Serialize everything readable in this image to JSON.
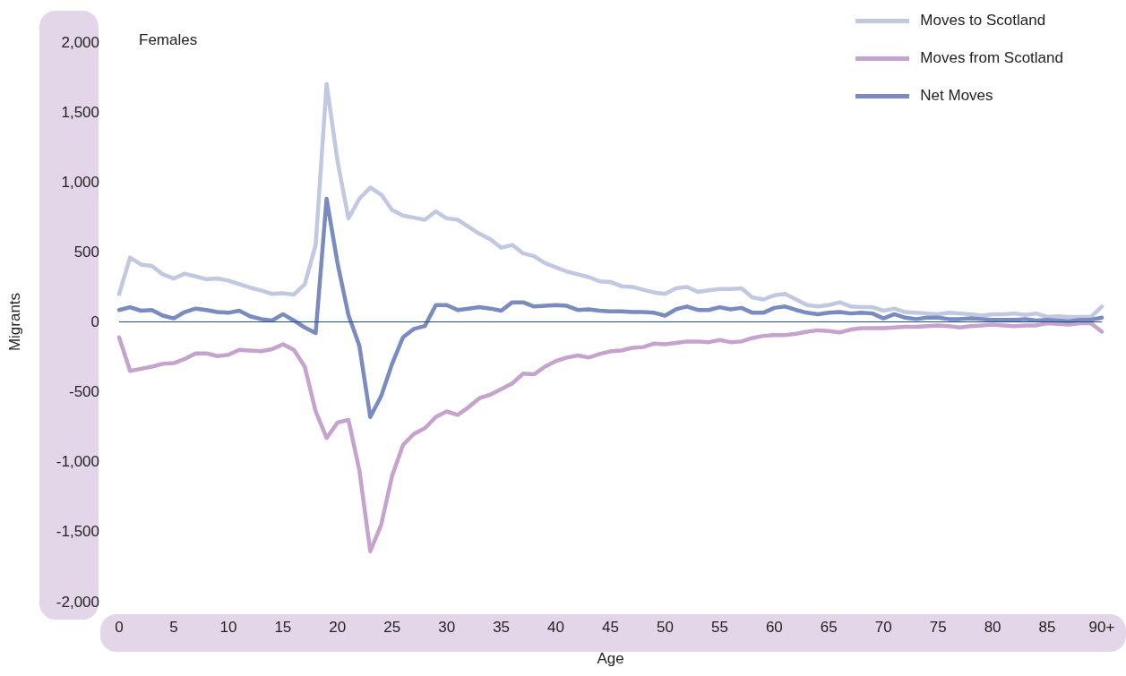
{
  "chart_data": {
    "type": "line",
    "xlabel": "Age",
    "ylabel": "Migrants",
    "annotations": [
      "Females"
    ],
    "categories": [
      "0",
      null,
      null,
      null,
      null,
      "5",
      null,
      null,
      null,
      null,
      "10",
      null,
      null,
      null,
      null,
      "15",
      null,
      null,
      null,
      null,
      "20",
      null,
      null,
      null,
      null,
      "25",
      null,
      null,
      null,
      null,
      "30",
      null,
      null,
      null,
      null,
      "35",
      null,
      null,
      null,
      null,
      "40",
      null,
      null,
      null,
      null,
      "45",
      null,
      null,
      null,
      null,
      "50",
      null,
      null,
      null,
      null,
      "55",
      null,
      null,
      null,
      null,
      "60",
      null,
      null,
      null,
      null,
      "65",
      null,
      null,
      null,
      null,
      "70",
      null,
      null,
      null,
      null,
      "75",
      null,
      null,
      null,
      null,
      "80",
      null,
      null,
      null,
      null,
      "85",
      null,
      null,
      null,
      null,
      "90+"
    ],
    "series": [
      {
        "name": "Moves to Scotland",
        "color": "#c0c8e2",
        "values": [
          200,
          460,
          410,
          400,
          340,
          310,
          345,
          325,
          305,
          310,
          295,
          270,
          245,
          225,
          200,
          205,
          195,
          270,
          550,
          1700,
          1150,
          740,
          880,
          960,
          910,
          800,
          760,
          745,
          730,
          790,
          740,
          730,
          680,
          630,
          590,
          530,
          550,
          490,
          470,
          420,
          390,
          360,
          340,
          320,
          290,
          285,
          255,
          250,
          230,
          210,
          200,
          240,
          250,
          215,
          225,
          235,
          235,
          240,
          175,
          160,
          190,
          200,
          160,
          120,
          110,
          120,
          140,
          110,
          105,
          105,
          80,
          95,
          70,
          65,
          60,
          55,
          65,
          60,
          55,
          45,
          55,
          55,
          60,
          50,
          60,
          35,
          40,
          35,
          35,
          35,
          110
        ]
      },
      {
        "name": "Moves from Scotland",
        "color": "#c6a3ce",
        "values": [
          -110,
          -350,
          -335,
          -320,
          -300,
          -295,
          -265,
          -225,
          -225,
          -245,
          -235,
          -200,
          -205,
          -210,
          -195,
          -160,
          -200,
          -320,
          -640,
          -830,
          -720,
          -700,
          -1060,
          -1640,
          -1450,
          -1100,
          -880,
          -800,
          -760,
          -680,
          -640,
          -665,
          -610,
          -545,
          -520,
          -480,
          -440,
          -370,
          -375,
          -320,
          -280,
          -255,
          -240,
          -255,
          -230,
          -210,
          -205,
          -185,
          -180,
          -155,
          -160,
          -150,
          -140,
          -140,
          -145,
          -130,
          -145,
          -140,
          -115,
          -100,
          -95,
          -95,
          -85,
          -70,
          -60,
          -65,
          -75,
          -55,
          -45,
          -45,
          -45,
          -40,
          -35,
          -35,
          -30,
          -25,
          -30,
          -40,
          -30,
          -25,
          -20,
          -25,
          -30,
          -25,
          -25,
          -10,
          -15,
          -20,
          -10,
          -10,
          -70
        ]
      },
      {
        "name": "Net Moves",
        "color": "#7a8bc0",
        "values": [
          85,
          105,
          80,
          85,
          45,
          25,
          70,
          95,
          85,
          70,
          65,
          80,
          40,
          20,
          10,
          55,
          10,
          -40,
          -80,
          880,
          420,
          50,
          -170,
          -680,
          -530,
          -300,
          -110,
          -50,
          -30,
          120,
          120,
          85,
          95,
          105,
          95,
          80,
          140,
          140,
          110,
          115,
          120,
          115,
          85,
          90,
          80,
          75,
          75,
          70,
          70,
          65,
          45,
          90,
          110,
          85,
          85,
          105,
          90,
          100,
          65,
          65,
          100,
          110,
          85,
          65,
          55,
          65,
          70,
          60,
          65,
          60,
          25,
          55,
          30,
          20,
          30,
          30,
          20,
          20,
          25,
          20,
          15,
          15,
          15,
          20,
          10,
          15,
          10,
          5,
          15,
          15,
          30
        ]
      }
    ],
    "ylim": [
      -2000,
      2000
    ],
    "yticks": [
      {
        "value": -2000,
        "label": "-2,000"
      },
      {
        "value": -1500,
        "label": "-1,500"
      },
      {
        "value": -1000,
        "label": "-1,000"
      },
      -500,
      0,
      500,
      {
        "value": 1000,
        "label": "1,000"
      },
      {
        "value": 1500,
        "label": "1,500"
      },
      {
        "value": 2000,
        "label": "2,000"
      }
    ],
    "ref_lines": [
      {
        "axis": "y",
        "value": 0,
        "color": "#1f4e8c"
      }
    ],
    "grid": false,
    "legend": "top right",
    "marker": "none",
    "line_style": "solid"
  }
}
